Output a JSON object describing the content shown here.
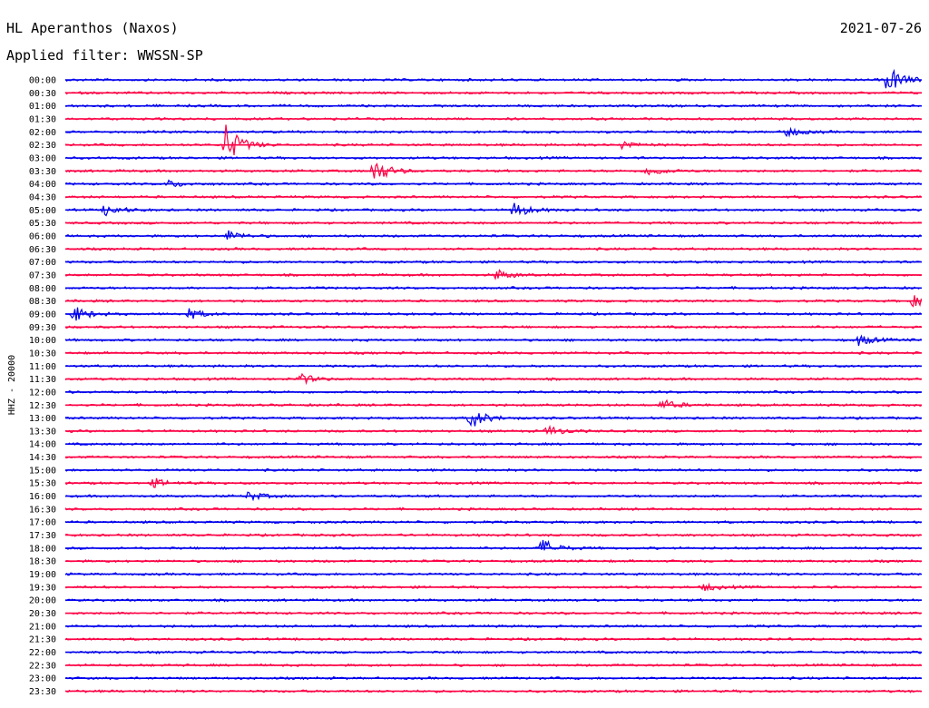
{
  "header": {
    "station": "HL Aperanthos (Naxos)",
    "date": "2021-07-26",
    "filter": "Applied filter: WWSSN-SP"
  },
  "chart_data": {
    "type": "line",
    "title": "HL Aperanthos (Naxos)",
    "ylabel": "HHZ - 20000",
    "colors": [
      "#0000ee",
      "#ff0044"
    ],
    "trace_times": [
      "00:00",
      "00:30",
      "01:00",
      "01:30",
      "02:00",
      "02:30",
      "03:00",
      "03:30",
      "04:00",
      "04:30",
      "05:00",
      "05:30",
      "06:00",
      "06:30",
      "07:00",
      "07:30",
      "08:00",
      "08:30",
      "09:00",
      "09:30",
      "10:00",
      "10:30",
      "11:00",
      "11:30",
      "12:00",
      "12:30",
      "13:00",
      "13:30",
      "14:00",
      "14:30",
      "15:00",
      "15:30",
      "16:00",
      "16:30",
      "17:00",
      "17:30",
      "18:00",
      "18:30",
      "19:00",
      "19:30",
      "20:00",
      "20:30",
      "21:00",
      "21:30",
      "22:00",
      "22:30",
      "23:00",
      "23:30"
    ],
    "events": [
      {
        "row": 0,
        "minute": 28.8,
        "amp": 16
      },
      {
        "row": 4,
        "minute": 25.2,
        "amp": 6
      },
      {
        "row": 5,
        "minute": 5.6,
        "amp": 24
      },
      {
        "row": 5,
        "minute": 19.5,
        "amp": 5
      },
      {
        "row": 7,
        "minute": 10.8,
        "amp": 14
      },
      {
        "row": 7,
        "minute": 20.4,
        "amp": 6
      },
      {
        "row": 8,
        "minute": 3.6,
        "amp": 4
      },
      {
        "row": 10,
        "minute": 1.4,
        "amp": 7
      },
      {
        "row": 10,
        "minute": 15.7,
        "amp": 9
      },
      {
        "row": 12,
        "minute": 5.7,
        "amp": 6
      },
      {
        "row": 15,
        "minute": 15.1,
        "amp": 6
      },
      {
        "row": 17,
        "minute": 29.7,
        "amp": 6
      },
      {
        "row": 18,
        "minute": 0.3,
        "amp": 9
      },
      {
        "row": 18,
        "minute": 4.3,
        "amp": 6
      },
      {
        "row": 20,
        "minute": 27.8,
        "amp": 6
      },
      {
        "row": 23,
        "minute": 8.2,
        "amp": 6
      },
      {
        "row": 25,
        "minute": 20.9,
        "amp": 6
      },
      {
        "row": 26,
        "minute": 14.2,
        "amp": 12
      },
      {
        "row": 27,
        "minute": 16.9,
        "amp": 6
      },
      {
        "row": 31,
        "minute": 3.1,
        "amp": 5
      },
      {
        "row": 32,
        "minute": 6.4,
        "amp": 5
      },
      {
        "row": 36,
        "minute": 16.7,
        "amp": 10
      },
      {
        "row": 39,
        "minute": 22.4,
        "amp": 4
      }
    ]
  }
}
